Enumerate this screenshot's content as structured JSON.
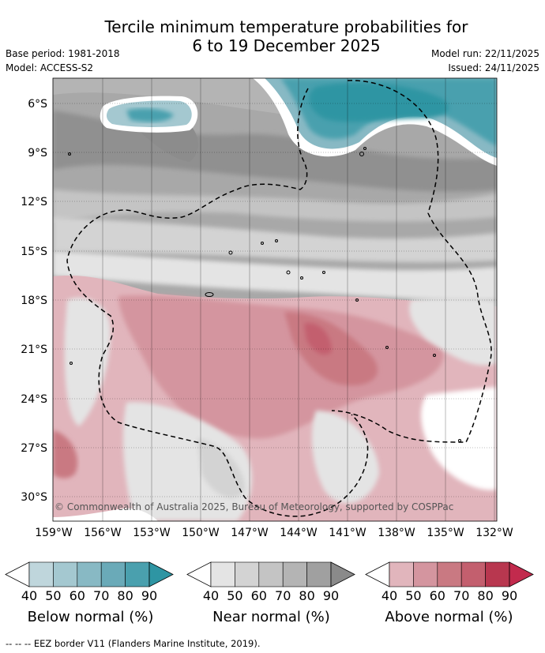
{
  "title_line1": "Tercile minimum temperature probabilities for",
  "title_line2": "6 to 19 December 2025",
  "base_period": "Base period: 1981-2018",
  "model": "Model: ACCESS-S2",
  "model_run": "Model run: 22/11/2025",
  "issued": "Issued: 24/11/2025",
  "map": {
    "lat_labels": [
      "6°S",
      "9°S",
      "12°S",
      "15°S",
      "18°S",
      "21°S",
      "24°S",
      "27°S",
      "30°S"
    ],
    "lon_labels": [
      "159°W",
      "156°W",
      "153°W",
      "150°W",
      "147°W",
      "144°W",
      "141°W",
      "138°W",
      "135°W",
      "132°W"
    ],
    "copyright": "© Commonwealth of Australia 2025, Bureau of Meteorology, supported by COSPPac"
  },
  "colorbars": [
    {
      "title": "Below normal (%)",
      "ticks": [
        "40",
        "50",
        "60",
        "70",
        "80",
        "90"
      ],
      "colors": [
        "#ffffff",
        "#bfd6dc",
        "#a4c8d0",
        "#88b9c4",
        "#6aaab8",
        "#4aa0ae",
        "#2e95a3"
      ]
    },
    {
      "title": "Near normal (%)",
      "ticks": [
        "40",
        "50",
        "60",
        "70",
        "80",
        "90"
      ],
      "colors": [
        "#ffffff",
        "#e4e4e4",
        "#d3d3d3",
        "#c4c4c4",
        "#b4b4b4",
        "#a0a0a0",
        "#8a8a8a"
      ]
    },
    {
      "title": "Above normal (%)",
      "ticks": [
        "40",
        "50",
        "60",
        "70",
        "80",
        "90"
      ],
      "colors": [
        "#ffffff",
        "#e1b5bc",
        "#d4959f",
        "#c97982",
        "#c35f6e",
        "#b8374f",
        "#c22a4d"
      ]
    }
  ],
  "eez_legend": "--  --  -- EEZ border V11 (Flanders Marine Institute, 2019)."
}
